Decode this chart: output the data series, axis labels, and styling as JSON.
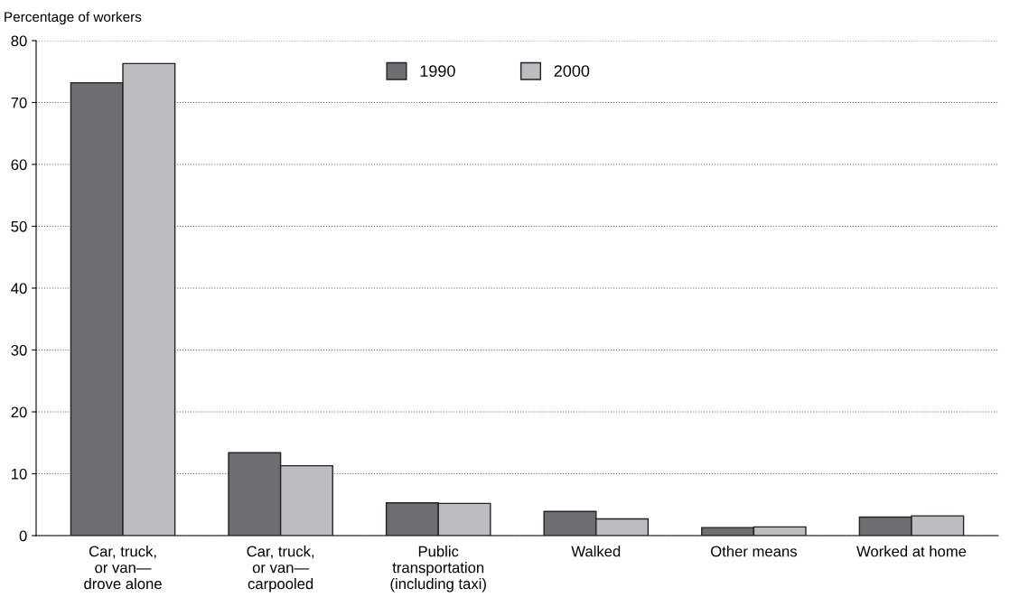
{
  "chart_data": {
    "type": "bar",
    "ylabel": "Percentage of workers",
    "categories": [
      "Car, truck,\nor van—\ndrove alone",
      "Car, truck,\nor van—\ncarpooled",
      "Public\ntransportation\n(including taxi)",
      "Walked",
      "Other means",
      "Worked at home"
    ],
    "series": [
      {
        "name": "1990",
        "color": "#6d6e72",
        "values": [
          73.2,
          13.4,
          5.3,
          3.9,
          1.3,
          3.0
        ]
      },
      {
        "name": "2000",
        "color": "#bcbdc0",
        "values": [
          76.3,
          11.3,
          5.2,
          2.7,
          1.4,
          3.2
        ]
      }
    ],
    "ylim": [
      0,
      80
    ],
    "yticks": [
      0,
      10,
      20,
      30,
      40,
      50,
      60,
      70,
      80
    ],
    "grid": "y",
    "legend": "top"
  }
}
